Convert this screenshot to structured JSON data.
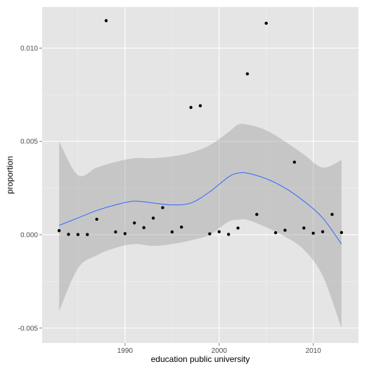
{
  "chart_data": {
    "type": "scatter",
    "xlabel": "education public university",
    "ylabel": "proportion",
    "xlim": [
      1981.2,
      2014.8
    ],
    "ylim": [
      -0.0058,
      0.0122
    ],
    "x_ticks": [
      1990,
      2000,
      2010
    ],
    "x_tick_labels": [
      "1990",
      "2000",
      "2010"
    ],
    "y_ticks": [
      -0.005,
      0.0,
      0.005,
      0.01
    ],
    "y_tick_labels": [
      "-0.005",
      "0.000",
      "0.005",
      "0.010"
    ],
    "grid": true,
    "legend": "none",
    "points": {
      "x": [
        1983,
        1984,
        1985,
        1986,
        1987,
        1988,
        1989,
        1990,
        1991,
        1992,
        1993,
        1994,
        1995,
        1996,
        1997,
        1998,
        1999,
        2000,
        2001,
        2002,
        2003,
        2004,
        2005,
        2006,
        2007,
        2008,
        2009,
        2010,
        2011,
        2012,
        2013
      ],
      "y": [
        0.00022,
        2e-05,
        1e-05,
        1e-05,
        0.00083,
        0.01147,
        0.00015,
        6e-05,
        0.00063,
        0.00038,
        0.00089,
        0.00145,
        0.00015,
        0.00041,
        0.00682,
        0.00691,
        5e-05,
        0.00016,
        2e-05,
        0.00036,
        0.00862,
        0.00109,
        0.01133,
        0.00011,
        0.00024,
        0.00389,
        0.00036,
        8e-05,
        0.00016,
        0.00109,
        0.00012
      ]
    },
    "smooth": {
      "x": [
        1983,
        1985,
        1987,
        1989,
        1991,
        1993,
        1995,
        1997,
        1999,
        2001,
        2002,
        2003,
        2005,
        2007,
        2009,
        2011,
        2013
      ],
      "y": [
        0.0005,
        0.0009,
        0.0013,
        0.0016,
        0.0018,
        0.0017,
        0.0016,
        0.0017,
        0.0023,
        0.0031,
        0.0033,
        0.0033,
        0.003,
        0.0025,
        0.0018,
        0.0009,
        -0.0005
      ],
      "upper": [
        0.005,
        0.0032,
        0.0036,
        0.0039,
        0.0041,
        0.0041,
        0.0042,
        0.0044,
        0.0048,
        0.0055,
        0.0059,
        0.0059,
        0.0056,
        0.005,
        0.0043,
        0.0036,
        0.004
      ],
      "lower": [
        -0.0041,
        -0.0018,
        -0.0011,
        -0.0007,
        -0.0005,
        -0.0006,
        -0.0005,
        -0.0003,
        0.0,
        0.0007,
        0.0008,
        0.0008,
        0.0004,
        -0.0001,
        -0.0008,
        -0.0022,
        -0.005
      ]
    },
    "colors": {
      "panel": "#e5e5e5",
      "grid_major": "#ffffff",
      "grid_minor": "#f2f2f2",
      "points": "#000000",
      "smooth_line": "#3366ff",
      "ribbon": "#999999"
    }
  }
}
